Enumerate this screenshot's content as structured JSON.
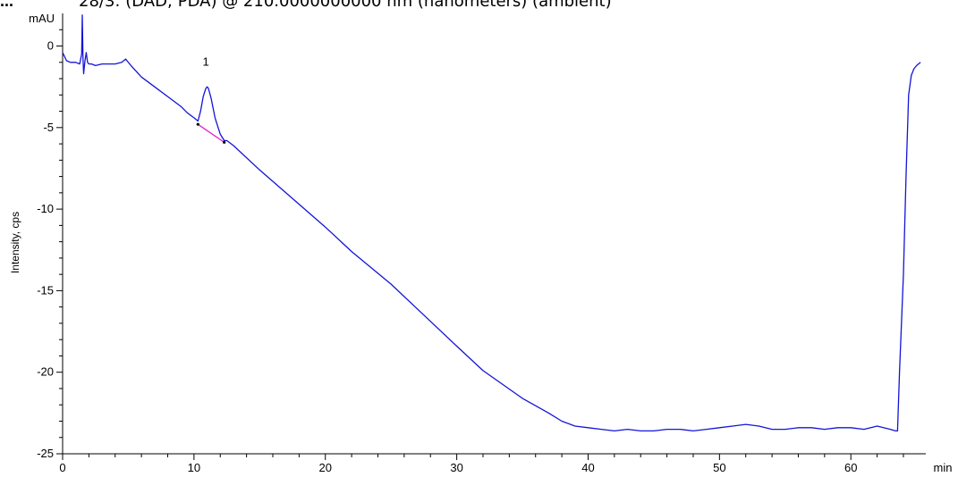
{
  "header": {
    "prefix": "...",
    "title": "28/3: (DAD; PDA) @ 210.0000000000 nm (nanometers) (ambient)"
  },
  "chart_data": {
    "type": "line",
    "title": "28/3: (DAD; PDA) @ 210.0000000000 nm (nanometers) (ambient)",
    "xlabel": "",
    "x_unit": "min",
    "ylabel": "Intensity, cps",
    "y_unit": "mAU",
    "xlim": [
      0,
      65.5
    ],
    "ylim": [
      -25,
      2
    ],
    "x_ticks": [
      0,
      10,
      20,
      30,
      40,
      50,
      60
    ],
    "y_ticks": [
      0,
      -5,
      -10,
      -15,
      -20,
      -25
    ],
    "grid": false,
    "legend": "none",
    "colors": {
      "trace": "#1414d8",
      "baseline": "#e020d0",
      "axis": "#000000"
    },
    "series": [
      {
        "x": [
          0,
          0.3,
          0.6,
          1.0,
          1.3,
          1.45,
          1.5,
          1.55,
          1.6,
          1.7,
          1.8,
          1.9,
          2.0,
          2.2,
          2.5,
          3.0,
          3.5,
          4.0,
          4.5,
          4.8,
          5.2,
          6,
          7,
          8,
          9,
          9.5,
          10,
          10.3,
          10.5,
          10.7,
          10.9,
          11.0,
          11.1,
          11.3,
          11.6,
          12.0,
          12.3,
          12.5,
          13,
          15,
          17,
          20,
          22,
          25,
          27.5,
          30,
          32,
          35,
          37,
          38,
          39,
          40,
          41,
          42,
          43,
          44,
          45,
          46,
          47,
          48,
          49,
          50,
          51,
          52,
          53,
          54,
          55,
          56,
          57,
          58,
          59,
          60,
          61,
          62,
          63,
          63.4,
          63.55,
          63.7,
          63.85,
          64.0,
          64.2,
          64.4,
          64.6,
          64.8,
          65.0,
          65.3
        ],
        "y": [
          -0.4,
          -0.9,
          -1.0,
          -1.0,
          -1.1,
          -0.5,
          1.9,
          -0.8,
          -1.7,
          -0.9,
          -0.4,
          -1.0,
          -1.1,
          -1.1,
          -1.2,
          -1.1,
          -1.1,
          -1.1,
          -1.0,
          -0.8,
          -1.2,
          -1.9,
          -2.5,
          -3.1,
          -3.7,
          -4.1,
          -4.4,
          -4.6,
          -4.0,
          -3.1,
          -2.6,
          -2.5,
          -2.6,
          -3.2,
          -4.4,
          -5.4,
          -5.8,
          -5.8,
          -6.1,
          -7.6,
          -9.0,
          -11.1,
          -12.6,
          -14.6,
          -16.5,
          -18.4,
          -19.9,
          -21.6,
          -22.5,
          -23.0,
          -23.3,
          -23.4,
          -23.5,
          -23.6,
          -23.5,
          -23.6,
          -23.6,
          -23.5,
          -23.5,
          -23.6,
          -23.5,
          -23.4,
          -23.3,
          -23.2,
          -23.3,
          -23.5,
          -23.5,
          -23.4,
          -23.4,
          -23.5,
          -23.4,
          -23.4,
          -23.5,
          -23.3,
          -23.5,
          -23.6,
          -23.6,
          -20.0,
          -17.0,
          -14.0,
          -8.0,
          -3.0,
          -1.8,
          -1.4,
          -1.2,
          -1.0
        ]
      }
    ],
    "integration_baseline": {
      "x": [
        10.3,
        12.3
      ],
      "y": [
        -4.8,
        -5.9
      ]
    },
    "annotations": [
      {
        "text": "1",
        "x": 10.9,
        "y": -1.2
      }
    ]
  }
}
